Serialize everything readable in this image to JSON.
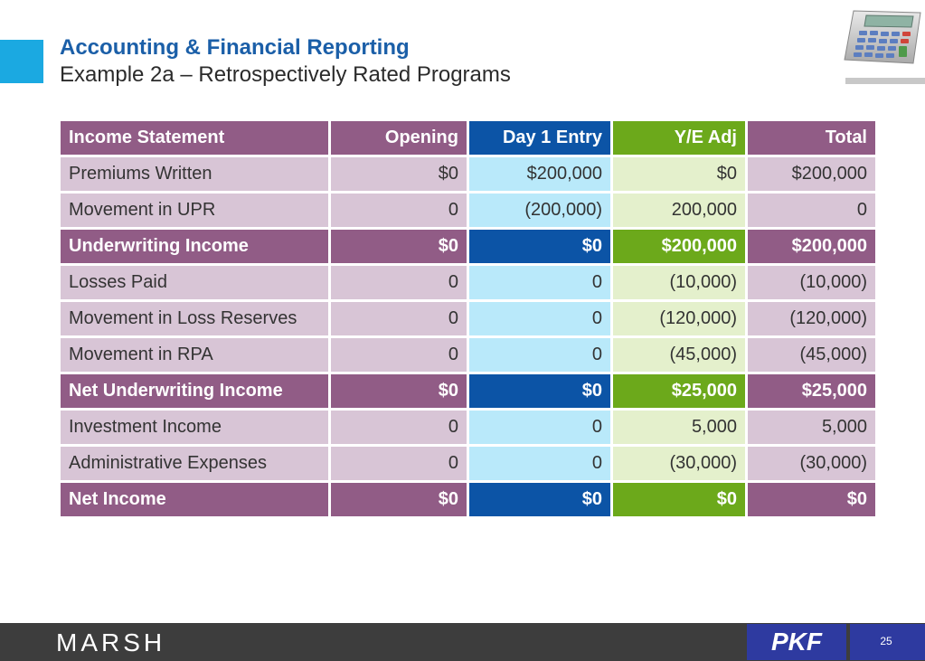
{
  "slide": {
    "title": "Accounting & Financial Reporting",
    "subtitle": "Example 2a – Retrospectively Rated Programs"
  },
  "table": {
    "headers": [
      "Income Statement",
      "Opening",
      "Day 1 Entry",
      "Y/E Adj",
      "Total"
    ],
    "rows": [
      {
        "label": "Premiums Written",
        "values": [
          "$0",
          "$200,000",
          "$0",
          "$200,000"
        ],
        "style": "normal"
      },
      {
        "label": "Movement in UPR",
        "values": [
          "0",
          "(200,000)",
          "200,000",
          "0"
        ],
        "style": "normal"
      },
      {
        "label": "Underwriting Income",
        "values": [
          "$0",
          "$0",
          "$200,000",
          "$200,000"
        ],
        "style": "subtotal"
      },
      {
        "label": "Losses Paid",
        "values": [
          "0",
          "0",
          "(10,000)",
          "(10,000)"
        ],
        "style": "normal"
      },
      {
        "label": "Movement in Loss Reserves",
        "values": [
          "0",
          "0",
          "(120,000)",
          "(120,000)"
        ],
        "style": "normal"
      },
      {
        "label": "Movement in RPA",
        "values": [
          "0",
          "0",
          "(45,000)",
          "(45,000)"
        ],
        "style": "normal"
      },
      {
        "label": "Net Underwriting Income",
        "values": [
          "$0",
          "$0",
          "$25,000",
          "$25,000"
        ],
        "style": "subtotal"
      },
      {
        "label": "Investment Income",
        "values": [
          "0",
          "0",
          "5,000",
          "5,000"
        ],
        "style": "normal"
      },
      {
        "label": "Administrative Expenses",
        "values": [
          "0",
          "0",
          "(30,000)",
          "(30,000)"
        ],
        "style": "normal"
      },
      {
        "label": "Net Income",
        "values": [
          "$0",
          "$0",
          "$0",
          "$0"
        ],
        "style": "subtotal"
      }
    ]
  },
  "footer": {
    "left_logo": "MARSH",
    "right_logo": "PKF",
    "page_number": "25"
  },
  "icons": {
    "header_graphic": "calculator-icon"
  },
  "colors": {
    "title": "#1b5fa8",
    "accent": "#1ba9e1",
    "plum": "#915c86",
    "plum_light": "#d8c5d6",
    "blue_dark": "#0c54a6",
    "blue_light": "#b9e9fa",
    "green_dark": "#6ca91b",
    "green_light": "#e4f0cc",
    "footer": "#3d3d3d",
    "pkf": "#2e3aa0"
  }
}
